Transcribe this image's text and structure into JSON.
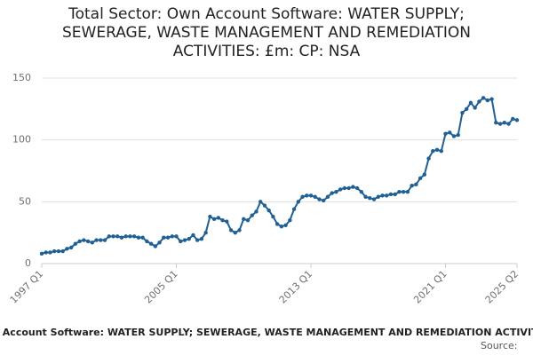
{
  "chart_data": {
    "type": "line",
    "title": "Total Sector: Own Account Software: WATER SUPPLY; SEWERAGE, WASTE MANAGEMENT AND REMEDIATION ACTIVITIES: £m: CP: NSA",
    "source": "Source:",
    "categories": [
      "1997 Q1",
      null,
      null,
      null,
      null,
      null,
      null,
      null,
      null,
      null,
      null,
      null,
      null,
      null,
      null,
      null,
      null,
      null,
      null,
      null,
      null,
      null,
      null,
      null,
      null,
      null,
      null,
      null,
      null,
      null,
      null,
      null,
      "2005 Q1",
      null,
      null,
      null,
      null,
      null,
      null,
      null,
      null,
      null,
      null,
      null,
      null,
      null,
      null,
      null,
      null,
      null,
      null,
      null,
      null,
      null,
      null,
      null,
      null,
      null,
      null,
      null,
      null,
      null,
      null,
      null,
      "2013 Q1",
      null,
      null,
      null,
      null,
      null,
      null,
      null,
      null,
      null,
      null,
      null,
      null,
      null,
      null,
      null,
      null,
      null,
      null,
      null,
      null,
      null,
      null,
      null,
      null,
      null,
      null,
      null,
      null,
      null,
      null,
      null,
      "2021 Q1",
      null,
      null,
      null,
      null,
      null,
      null,
      null,
      null,
      null,
      null,
      null,
      null,
      null,
      null,
      null,
      null,
      "2025 Q2"
    ],
    "series": [
      {
        "name": "Total Sector: Own Account Software: WATER SUPPLY; SEWERAGE, WASTE MANAGEMENT AND REMEDIATION ACTIVITIES: £m: CP: NSA",
        "color": "#206095",
        "values": [
          8,
          9,
          9,
          10,
          10,
          10,
          12,
          13,
          16,
          18,
          19,
          18,
          17,
          19,
          19,
          19,
          22,
          22,
          22,
          21,
          22,
          22,
          22,
          21,
          21,
          18,
          16,
          14,
          17,
          21,
          21,
          22,
          22,
          18,
          19,
          20,
          23,
          19,
          20,
          25,
          38,
          36,
          37,
          35,
          34,
          27,
          25,
          27,
          36,
          35,
          39,
          42,
          50,
          47,
          43,
          38,
          32,
          30,
          31,
          35,
          44,
          50,
          54,
          55,
          55,
          54,
          52,
          51,
          54,
          57,
          58,
          60,
          61,
          61,
          62,
          61,
          58,
          54,
          53,
          52,
          54,
          55,
          55,
          56,
          56,
          58,
          58,
          58,
          63,
          64,
          69,
          72,
          85,
          91,
          92,
          91,
          105,
          106,
          103,
          104,
          122,
          125,
          130,
          126,
          131,
          134,
          132,
          133,
          114,
          113,
          114,
          113,
          117,
          116
        ]
      }
    ],
    "ylim": [
      0,
      150
    ],
    "yticks": [
      0,
      50,
      100,
      150
    ],
    "grid": true
  }
}
